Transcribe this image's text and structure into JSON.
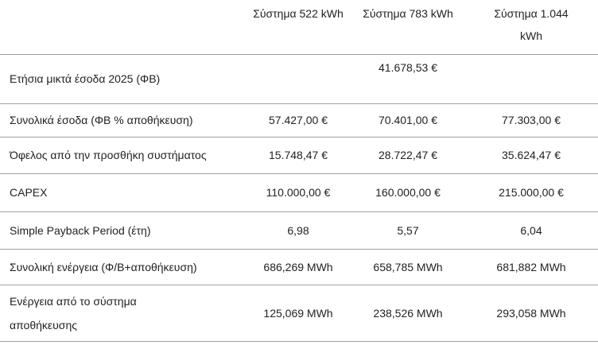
{
  "table": {
    "header": [
      "Σύστημα 522 kWh",
      "Σύστημα 783 kWh",
      "Σύστημα 1.044 kWh"
    ],
    "rows": [
      {
        "label": "Ετήσια μικτά έσοδα 2025 (ΦΒ)",
        "merged_value": "41.678,53 €"
      },
      {
        "label": "Συνολικά έσοδα (ΦΒ % αποθήκευση)",
        "values": [
          "57.427,00 €",
          "70.401,00 €",
          "77.303,00 €"
        ]
      },
      {
        "label": "Όφελος από την προσθήκη συστήματος",
        "values": [
          "15.748,47 €",
          "28.722,47 €",
          "35.624,47 €"
        ]
      },
      {
        "label": "CAPEX",
        "values": [
          "110.000,00 €",
          "160.000,00 €",
          "215.000,00 €"
        ]
      },
      {
        "label": "Simple Payback Period (έτη)",
        "values": [
          "6,98",
          "5,57",
          "6,04"
        ]
      },
      {
        "label": "Συνολική ενέργεια (Φ/Β+αποθήκευση)",
        "values": [
          "686,269 MWh",
          "658,785 MWh",
          "681,882 MWh"
        ]
      },
      {
        "label": "Ενέργεια από το σύστημα αποθήκευσης",
        "values": [
          "125,069 MWh",
          "238,526 MWh",
          "293,058 MWh"
        ]
      }
    ]
  }
}
